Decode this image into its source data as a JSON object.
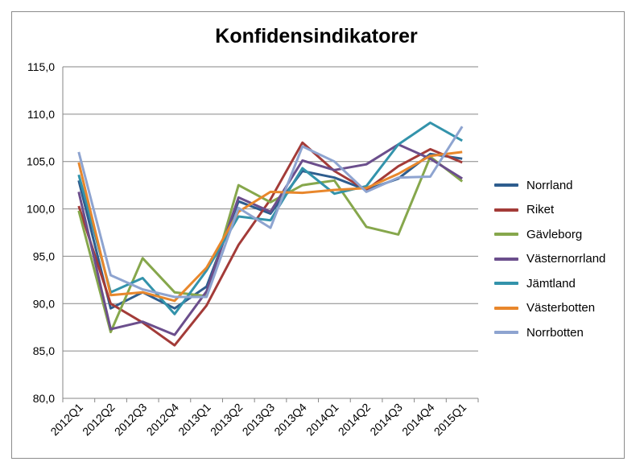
{
  "chart_data": {
    "type": "line",
    "title": "Konfidensindikatorer",
    "categories": [
      "2012Q1",
      "2012Q2",
      "2012Q3",
      "2012Q4",
      "2013Q1",
      "2013Q2",
      "2013Q3",
      "2013Q4",
      "2014Q1",
      "2014Q2",
      "2014Q3",
      "2014Q4",
      "2015Q1"
    ],
    "ylim": [
      80,
      115
    ],
    "yticks": [
      "80,0",
      "85,0",
      "90,0",
      "95,0",
      "100,0",
      "105,0",
      "110,0",
      "115,0"
    ],
    "grid": true,
    "legend_position": "right",
    "series": [
      {
        "name": "Norrland",
        "color": "#2E5D8E",
        "values": [
          103.0,
          89.5,
          91.2,
          89.5,
          91.8,
          100.8,
          99.5,
          104.0,
          103.3,
          102.0,
          103.2,
          105.8,
          105.3
        ]
      },
      {
        "name": "Riket",
        "color": "#A33B38",
        "values": [
          100.3,
          90.0,
          88.0,
          85.6,
          89.8,
          96.2,
          101.0,
          107.0,
          104.0,
          102.0,
          104.5,
          106.3,
          104.9
        ]
      },
      {
        "name": "Gävleborg",
        "color": "#86A74C",
        "values": [
          99.8,
          87.0,
          94.8,
          91.2,
          90.8,
          102.5,
          100.7,
          102.5,
          103.0,
          98.1,
          97.3,
          105.5,
          102.9
        ]
      },
      {
        "name": "Västernorrland",
        "color": "#6B4E8C",
        "values": [
          101.8,
          87.3,
          88.1,
          86.7,
          91.3,
          101.2,
          99.7,
          105.1,
          104.1,
          104.7,
          106.8,
          105.3,
          103.2
        ]
      },
      {
        "name": "Jämtland",
        "color": "#3393AB",
        "values": [
          103.6,
          91.2,
          92.7,
          88.9,
          93.5,
          99.2,
          98.8,
          104.3,
          101.6,
          102.4,
          106.8,
          109.1,
          107.2
        ]
      },
      {
        "name": "Västerbotten",
        "color": "#E8872C",
        "values": [
          104.9,
          90.9,
          91.2,
          90.3,
          93.8,
          99.7,
          101.8,
          101.7,
          102.0,
          102.2,
          103.7,
          105.6,
          106.0
        ]
      },
      {
        "name": "Norrbotten",
        "color": "#8EA4D0",
        "values": [
          106.0,
          93.0,
          91.5,
          90.7,
          90.7,
          100.1,
          98.0,
          106.6,
          105.0,
          101.8,
          103.3,
          103.4,
          108.7
        ]
      }
    ]
  }
}
